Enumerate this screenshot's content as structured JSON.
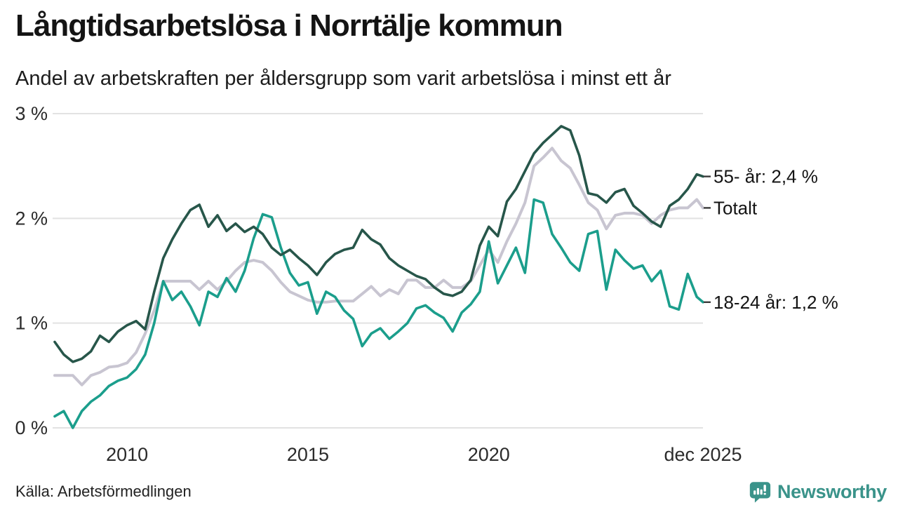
{
  "header": {
    "title": "Långtidsarbetslösa i Norrtälje kommun",
    "subtitle": "Andel av arbetskraften per åldersgrupp som varit arbetslösa i minst ett år"
  },
  "footer": {
    "source": "Källa: Arbetsförmedlingen",
    "brand_name": "Newsworthy",
    "brand_icon": "bar-chart-speech-bubble-icon"
  },
  "colors": {
    "series_55": "#27564a",
    "series_total": "#c8c5d1",
    "series_1824": "#1b9e8c",
    "grid": "#e2e2e2",
    "axis_text": "#2b2b2b",
    "legend_text": "#141414",
    "legend_tick": "#3a3a3a",
    "brand": "#3a938a"
  },
  "chart_data": {
    "type": "line",
    "title": "Långtidsarbetslösa i Norrtälje kommun",
    "subtitle": "Andel av arbetskraften per åldersgrupp som varit arbetslösa i minst ett år",
    "xlabel": "",
    "ylabel": "",
    "ylim": [
      0,
      3
    ],
    "grid": "horizontal",
    "legend_position": "right-at-line-ends",
    "y_ticks": [
      {
        "v": 3,
        "label": "3 %"
      },
      {
        "v": 2,
        "label": "2 %"
      },
      {
        "v": 1,
        "label": "1 %"
      },
      {
        "v": 0,
        "label": "0 %"
      }
    ],
    "x_ticks": [
      {
        "x": 2010,
        "label": "2010"
      },
      {
        "x": 2015,
        "label": "2015"
      },
      {
        "x": 2020,
        "label": "2020"
      },
      {
        "x": 2025.92,
        "label": "dec 2025"
      }
    ],
    "x": [
      2008,
      2008.25,
      2008.5,
      2008.75,
      2009,
      2009.25,
      2009.5,
      2009.75,
      2010,
      2010.25,
      2010.5,
      2010.75,
      2011,
      2011.25,
      2011.5,
      2011.75,
      2012,
      2012.25,
      2012.5,
      2012.75,
      2013,
      2013.25,
      2013.5,
      2013.75,
      2014,
      2014.25,
      2014.5,
      2014.75,
      2015,
      2015.25,
      2015.5,
      2015.75,
      2016,
      2016.25,
      2016.5,
      2016.75,
      2017,
      2017.25,
      2017.5,
      2017.75,
      2018,
      2018.25,
      2018.5,
      2018.75,
      2019,
      2019.25,
      2019.5,
      2019.75,
      2020,
      2020.25,
      2020.5,
      2020.75,
      2021,
      2021.25,
      2021.5,
      2021.75,
      2022,
      2022.25,
      2022.5,
      2022.75,
      2023,
      2023.25,
      2023.5,
      2023.75,
      2024,
      2024.25,
      2024.5,
      2024.75,
      2025,
      2025.25,
      2025.5,
      2025.75,
      2025.92
    ],
    "series": [
      {
        "name": "55- år",
        "legend_label": "55- år: 2,4 %",
        "latest_value": "2,4 %",
        "color": "#27564a",
        "values": [
          0.82,
          0.7,
          0.63,
          0.66,
          0.73,
          0.88,
          0.82,
          0.92,
          0.98,
          1.02,
          0.94,
          1.3,
          1.62,
          1.8,
          1.95,
          2.08,
          2.13,
          1.92,
          2.03,
          1.88,
          1.95,
          1.87,
          1.92,
          1.85,
          1.72,
          1.65,
          1.7,
          1.62,
          1.55,
          1.46,
          1.58,
          1.66,
          1.7,
          1.72,
          1.89,
          1.8,
          1.75,
          1.62,
          1.55,
          1.5,
          1.45,
          1.42,
          1.34,
          1.28,
          1.26,
          1.3,
          1.41,
          1.74,
          1.92,
          1.83,
          2.16,
          2.28,
          2.45,
          2.62,
          2.72,
          2.8,
          2.88,
          2.84,
          2.6,
          2.24,
          2.22,
          2.15,
          2.25,
          2.28,
          2.12,
          2.05,
          1.97,
          1.92,
          2.12,
          2.18,
          2.28,
          2.42,
          2.4
        ]
      },
      {
        "name": "Totalt",
        "legend_label": "Totalt",
        "latest_value": "2,1 %",
        "color": "#c8c5d1",
        "values": [
          0.5,
          0.5,
          0.5,
          0.41,
          0.5,
          0.53,
          0.58,
          0.59,
          0.62,
          0.72,
          0.9,
          1.12,
          1.4,
          1.4,
          1.4,
          1.4,
          1.32,
          1.4,
          1.32,
          1.4,
          1.5,
          1.58,
          1.6,
          1.58,
          1.5,
          1.39,
          1.3,
          1.26,
          1.22,
          1.2,
          1.2,
          1.21,
          1.21,
          1.21,
          1.28,
          1.35,
          1.26,
          1.32,
          1.28,
          1.41,
          1.41,
          1.34,
          1.34,
          1.41,
          1.34,
          1.34,
          1.4,
          1.55,
          1.7,
          1.58,
          1.78,
          1.95,
          2.15,
          2.5,
          2.58,
          2.67,
          2.55,
          2.48,
          2.32,
          2.15,
          2.08,
          1.9,
          2.03,
          2.05,
          2.05,
          2.03,
          1.95,
          2.03,
          2.08,
          2.1,
          2.1,
          2.18,
          2.1
        ]
      },
      {
        "name": "18-24 år",
        "legend_label": "18-24 år: 1,2 %",
        "latest_value": "1,2 %",
        "color": "#1b9e8c",
        "values": [
          0.11,
          0.16,
          0.0,
          0.16,
          0.25,
          0.31,
          0.4,
          0.45,
          0.48,
          0.56,
          0.7,
          1.0,
          1.4,
          1.22,
          1.3,
          1.16,
          0.98,
          1.3,
          1.25,
          1.43,
          1.3,
          1.5,
          1.81,
          2.04,
          2.01,
          1.72,
          1.48,
          1.36,
          1.39,
          1.09,
          1.3,
          1.25,
          1.12,
          1.04,
          0.78,
          0.9,
          0.95,
          0.85,
          0.92,
          1.0,
          1.14,
          1.17,
          1.1,
          1.05,
          0.92,
          1.1,
          1.18,
          1.3,
          1.78,
          1.38,
          1.55,
          1.72,
          1.48,
          2.18,
          2.15,
          1.85,
          1.72,
          1.58,
          1.5,
          1.85,
          1.88,
          1.32,
          1.7,
          1.6,
          1.52,
          1.55,
          1.4,
          1.5,
          1.16,
          1.13,
          1.47,
          1.25,
          1.2
        ]
      }
    ]
  }
}
